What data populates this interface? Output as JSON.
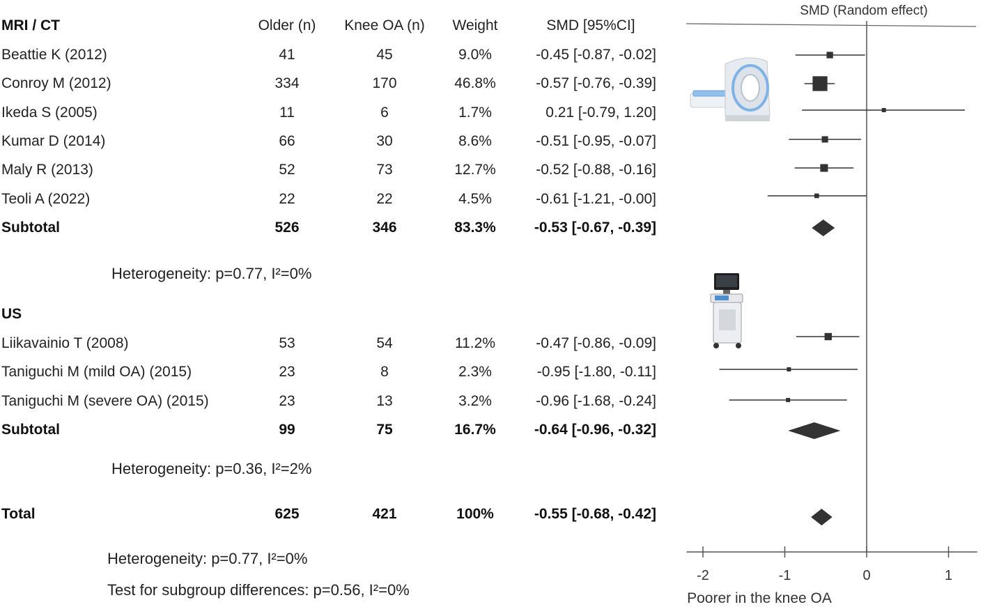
{
  "table": {
    "headers": {
      "group": "MRI / CT",
      "older": "Older (n)",
      "knee": "Knee OA (n)",
      "weight": "Weight",
      "smd": "SMD [95%CI]"
    },
    "groups": [
      {
        "label": "",
        "rows": [
          {
            "study": "Beattie K (2012)",
            "older": "41",
            "knee": "45",
            "weight": "9.0%",
            "smd": "-0.45 [-0.87, -0.02]"
          },
          {
            "study": "Conroy M (2012)",
            "older": "334",
            "knee": "170",
            "weight": "46.8%",
            "smd": "-0.57 [-0.76, -0.39]"
          },
          {
            "study": "Ikeda S (2005)",
            "older": "11",
            "knee": "6",
            "weight": "1.7%",
            "smd": "0.21 [-0.79, 1.20]"
          },
          {
            "study": "Kumar D (2014)",
            "older": "66",
            "knee": "30",
            "weight": "8.6%",
            "smd": "-0.51 [-0.95, -0.07]"
          },
          {
            "study": "Maly R (2013)",
            "older": "52",
            "knee": "73",
            "weight": "12.7%",
            "smd": "-0.52 [-0.88, -0.16]"
          },
          {
            "study": "Teoli A (2022)",
            "older": "22",
            "knee": "22",
            "weight": "4.5%",
            "smd": "-0.61 [-1.21, -0.00]"
          }
        ],
        "subtotal": {
          "study": "Subtotal",
          "older": "526",
          "knee": "346",
          "weight": "83.3%",
          "smd": "-0.53 [-0.67, -0.39]"
        },
        "heterogeneity": "Heterogeneity: p=0.77, I²=0%"
      },
      {
        "label": "US",
        "rows": [
          {
            "study": "Liikavainio T (2008)",
            "older": "53",
            "knee": "54",
            "weight": "11.2%",
            "smd": "-0.47 [-0.86, -0.09]"
          },
          {
            "study": "Taniguchi M (mild OA) (2015)",
            "older": "23",
            "knee": "8",
            "weight": "2.3%",
            "smd": "-0.95 [-1.80, -0.11]"
          },
          {
            "study": "Taniguchi M (severe OA) (2015)",
            "older": "23",
            "knee": "13",
            "weight": "3.2%",
            "smd": "-0.96 [-1.68, -0.24]"
          }
        ],
        "subtotal": {
          "study": "Subtotal",
          "older": "99",
          "knee": "75",
          "weight": "16.7%",
          "smd": "-0.64 [-0.96, -0.32]"
        },
        "heterogeneity": "Heterogeneity: p=0.36, I²=2%"
      }
    ],
    "total": {
      "study": "Total",
      "older": "625",
      "knee": "421",
      "weight": "100%",
      "smd": "-0.55 [-0.68, -0.42]"
    },
    "total_heterogeneity": "Heterogeneity: p=0.77, I²=0%",
    "subgroup_test": "Test for subgroup differences: p=0.56, I²=0%"
  },
  "chart_data": {
    "type": "forest",
    "title": "SMD (Random effect)",
    "xlabel": "Poorer in the knee OA",
    "xlim": [
      -2.2,
      1.35
    ],
    "xticks": [
      -2,
      -1,
      0,
      1
    ],
    "xtick_labels": [
      "-2",
      "-1",
      "0",
      "1"
    ],
    "reference_line": 0,
    "studies": [
      {
        "study": "Beattie K (2012)",
        "est": -0.45,
        "lo": -0.87,
        "hi": -0.02,
        "weight": 9.0
      },
      {
        "study": "Conroy M (2012)",
        "est": -0.57,
        "lo": -0.76,
        "hi": -0.39,
        "weight": 46.8
      },
      {
        "study": "Ikeda S (2005)",
        "est": 0.21,
        "lo": -0.79,
        "hi": 1.2,
        "weight": 1.7
      },
      {
        "study": "Kumar D (2014)",
        "est": -0.51,
        "lo": -0.95,
        "hi": -0.07,
        "weight": 8.6
      },
      {
        "study": "Maly R (2013)",
        "est": -0.52,
        "lo": -0.88,
        "hi": -0.16,
        "weight": 12.7
      },
      {
        "study": "Teoli A (2022)",
        "est": -0.61,
        "lo": -1.21,
        "hi": -0.0,
        "weight": 4.5
      },
      {
        "study": "Liikavainio T (2008)",
        "est": -0.47,
        "lo": -0.86,
        "hi": -0.09,
        "weight": 11.2
      },
      {
        "study": "Taniguchi M (mild OA) (2015)",
        "est": -0.95,
        "lo": -1.8,
        "hi": -0.11,
        "weight": 2.3
      },
      {
        "study": "Taniguchi M (severe OA) (2015)",
        "est": -0.96,
        "lo": -1.68,
        "hi": -0.24,
        "weight": 3.2
      }
    ],
    "summaries": [
      {
        "label": "Subtotal MRI / CT",
        "est": -0.53,
        "lo": -0.67,
        "hi": -0.39
      },
      {
        "label": "Subtotal US",
        "est": -0.64,
        "lo": -0.96,
        "hi": -0.32
      },
      {
        "label": "Total",
        "est": -0.55,
        "lo": -0.68,
        "hi": -0.42
      }
    ],
    "colors": {
      "marks": "#333333",
      "axis": "#555555",
      "device_accent": "#7fb3e6"
    },
    "icons": [
      "mri-scanner-icon",
      "ultrasound-machine-icon"
    ]
  }
}
